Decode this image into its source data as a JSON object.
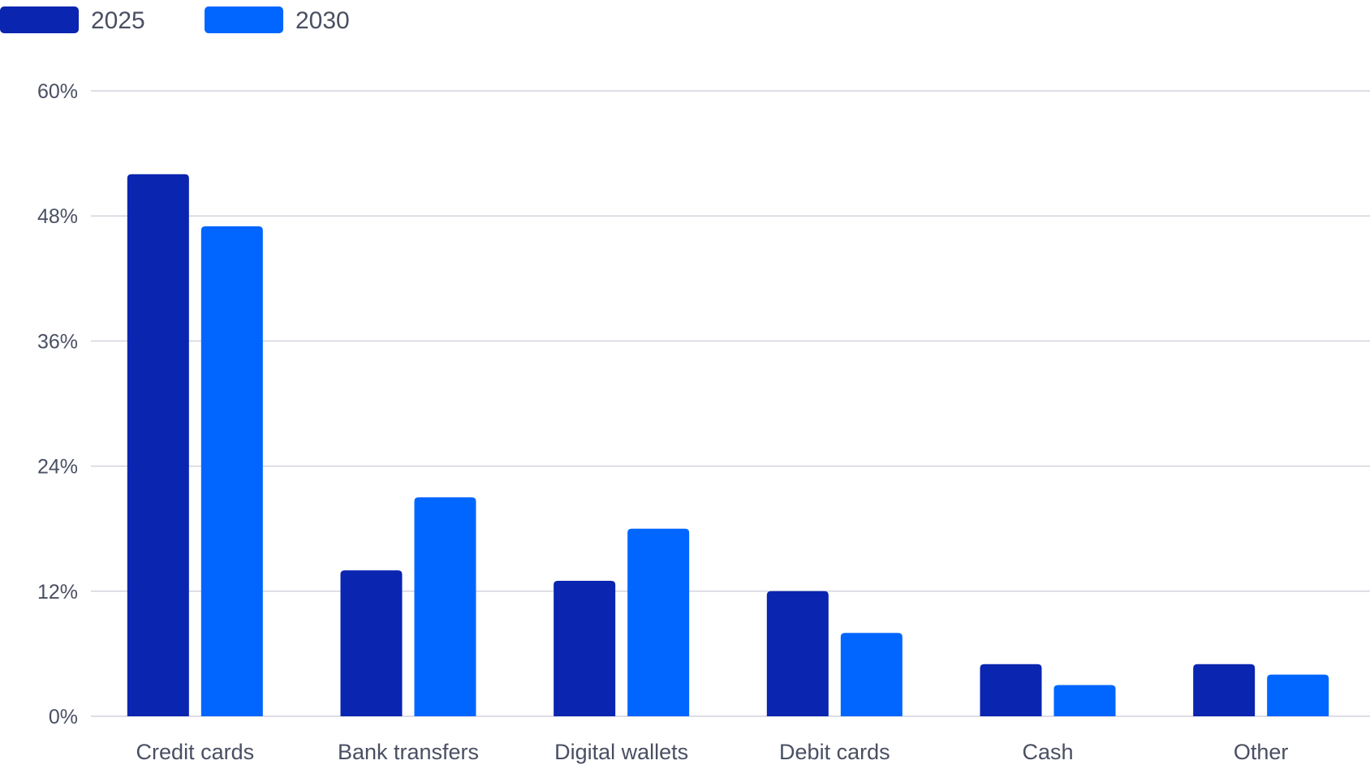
{
  "chart_data": {
    "type": "bar",
    "categories": [
      "Credit cards",
      "Bank transfers",
      "Digital wallets",
      "Debit cards",
      "Cash",
      "Other"
    ],
    "series": [
      {
        "name": "2025",
        "color": "#0a25b0",
        "values": [
          52,
          14,
          13,
          12,
          5,
          5
        ]
      },
      {
        "name": "2030",
        "color": "#0066ff",
        "values": [
          47,
          21,
          18,
          8,
          3,
          4
        ]
      }
    ],
    "ylim": [
      0,
      60
    ],
    "yticks": [
      0,
      12,
      24,
      36,
      48,
      60
    ],
    "ytick_labels": [
      "0%",
      "12%",
      "24%",
      "36%",
      "48%",
      "60%"
    ],
    "grid": true,
    "legend_position": "top-left",
    "title": "",
    "xlabel": "",
    "ylabel": ""
  }
}
